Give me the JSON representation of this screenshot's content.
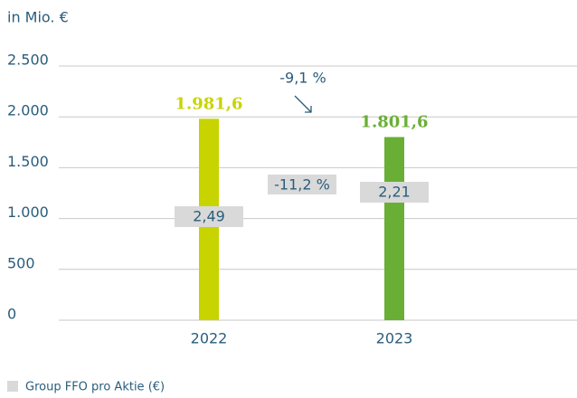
{
  "chart_data": {
    "type": "bar",
    "y_label": "in Mio. €",
    "categories": [
      "2022",
      "2023"
    ],
    "values": [
      1981.6,
      1801.6
    ],
    "value_labels": [
      "1.981,6",
      "1.801,6"
    ],
    "colors": [
      "#c8d400",
      "#6aaf35"
    ],
    "ylim": [
      0,
      2500
    ],
    "yticks": [
      0,
      500,
      {
        "value": 1000,
        "label": "1.000"
      },
      {
        "value": 1500,
        "label": "1.500"
      },
      {
        "value": 2000,
        "label": "2.000"
      },
      {
        "value": 2500,
        "label": "2.500"
      }
    ],
    "grid": true,
    "ffo": {
      "name": "Group FFO pro Aktie (€)",
      "values": [
        2.49,
        2.21
      ],
      "value_labels": [
        "2,49",
        "2,21"
      ],
      "color": "#d9d9d9"
    },
    "annotations": [
      "-9,1 %",
      "-11,2 %"
    ]
  }
}
